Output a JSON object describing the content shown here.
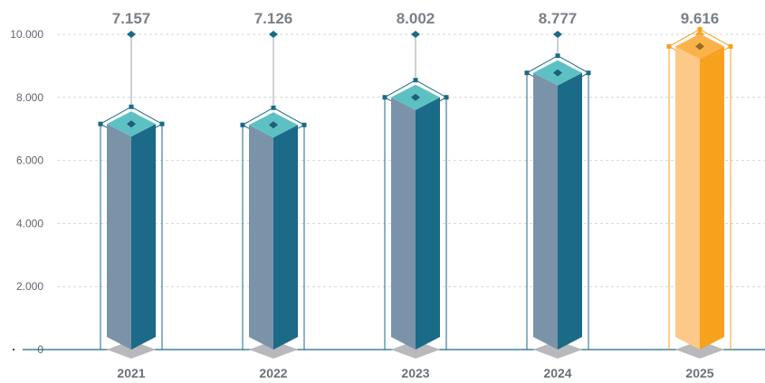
{
  "chart_data": {
    "type": "bar",
    "title": "",
    "xlabel": "",
    "ylabel": "",
    "categories": [
      "2021",
      "2022",
      "2023",
      "2024",
      "2025"
    ],
    "values": [
      7157,
      7126,
      8002,
      8777,
      9616
    ],
    "value_labels": [
      "7.157",
      "7.126",
      "8.002",
      "8.777",
      "9.616"
    ],
    "ylim": [
      0,
      10000
    ],
    "yticks": [
      0,
      2000,
      4000,
      6000,
      8000,
      10000
    ],
    "ytick_labels": [
      "0",
      "2.000",
      "4.000",
      "6.000",
      "8.000",
      "10.000"
    ],
    "grid": true,
    "legend": "none",
    "highlight_index": 4
  },
  "colors": {
    "bar_front": "#7a93a8",
    "bar_side": "#1b6a87",
    "bar_top": "#5dc1c4",
    "outline": "#1b6a87",
    "highlight_front": "#fdc989",
    "highlight_side": "#f7a11d",
    "highlight_top": "#fbb24a",
    "highlight_outline": "#f7a11d",
    "shadow": "#b7b9bc",
    "grid": "#d3d7dc"
  }
}
